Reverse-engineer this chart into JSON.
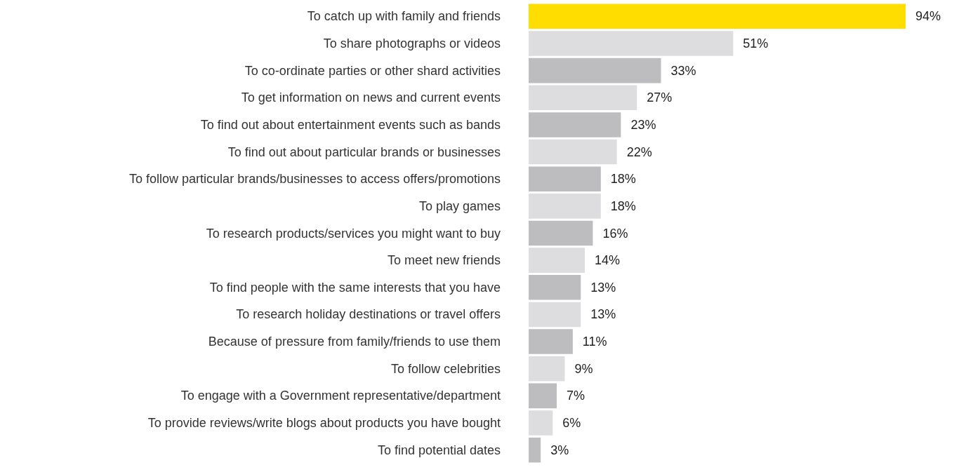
{
  "chart_data": {
    "type": "bar",
    "orientation": "horizontal",
    "categories": [
      "To catch up with family and friends",
      "To share photographs or videos",
      "To co-ordinate parties or other shard activities",
      "To get information on news and current events",
      "To find out about entertainment events such as bands",
      "To find out about particular brands or businesses",
      "To follow particular brands/businesses to access offers/promotions",
      "To play games",
      "To research products/services you might want to buy",
      "To meet new friends",
      "To find people with the same interests that you have",
      "To research holiday destinations or travel offers",
      "Because of pressure from family/friends to use them",
      "To follow celebrities",
      "To engage with a Government representative/department",
      "To provide reviews/write blogs about products you have bought",
      "To find potential dates"
    ],
    "values": [
      94,
      51,
      33,
      27,
      23,
      22,
      18,
      18,
      16,
      14,
      13,
      13,
      11,
      9,
      7,
      6,
      3
    ],
    "value_labels": [
      "94%",
      "51%",
      "33%",
      "27%",
      "23%",
      "22%",
      "18%",
      "18%",
      "16%",
      "14%",
      "13%",
      "13%",
      "11%",
      "9%",
      "7%",
      "6%",
      "3%"
    ],
    "colors": [
      "#ffdd00",
      "#dddddf",
      "#bdbdbf",
      "#dddddf",
      "#bdbdbf",
      "#dddddf",
      "#bdbdbf",
      "#dddddf",
      "#bdbdbf",
      "#dddddf",
      "#bdbdbf",
      "#dddddf",
      "#bdbdbf",
      "#dddddf",
      "#bdbdbf",
      "#dddddf",
      "#bdbdbf"
    ]
  }
}
